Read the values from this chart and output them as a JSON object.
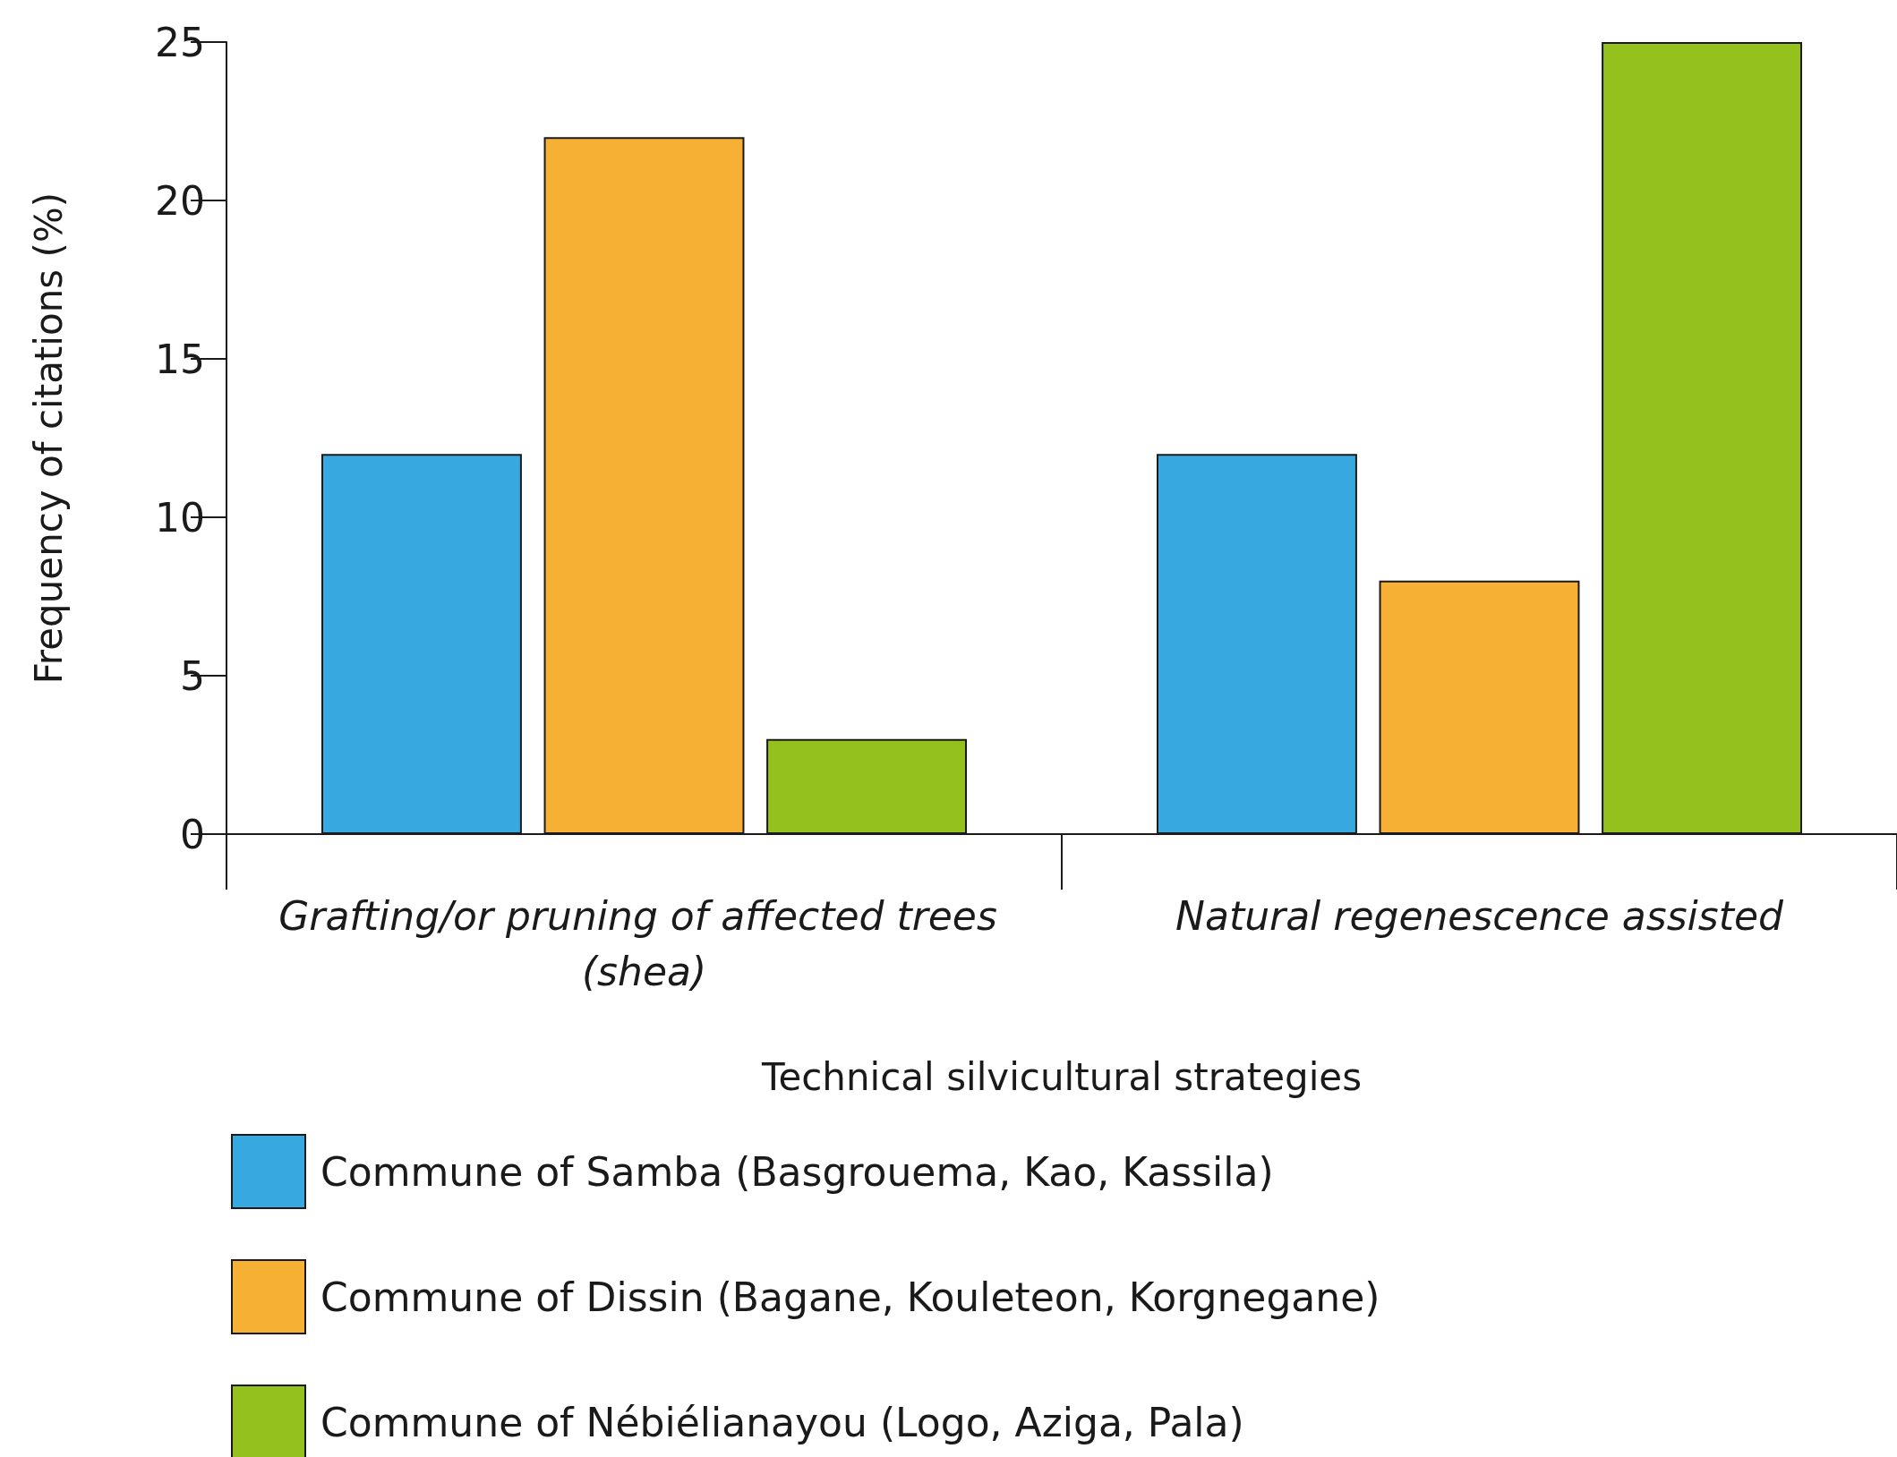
{
  "chart_data": {
    "type": "bar",
    "categories": [
      "Grafting/or pruning of affected trees (shea)",
      "Natural regenescence assisted"
    ],
    "xlabel": "Technical silvicultural strategies",
    "ylabel": "Frequency of citations (%)",
    "series": [
      {
        "name": "Commune of Samba (Basgrouema, Kao, Kassila)",
        "color": "#38a9e0",
        "values": [
          12,
          12
        ]
      },
      {
        "name": "Commune of Dissin (Bagane, Kouleteon, Korgnegane)",
        "color": "#f6b034",
        "values": [
          22,
          8
        ]
      },
      {
        "name": "Commune of Nébiélianayou (Logo, Aziga, Pala)",
        "color": "#95c11f",
        "values": [
          3,
          25
        ]
      }
    ],
    "ylim": [
      0,
      25
    ],
    "yticks": [
      0,
      5,
      10,
      15,
      20,
      25
    ],
    "grid": false,
    "legend": "bottom"
  }
}
